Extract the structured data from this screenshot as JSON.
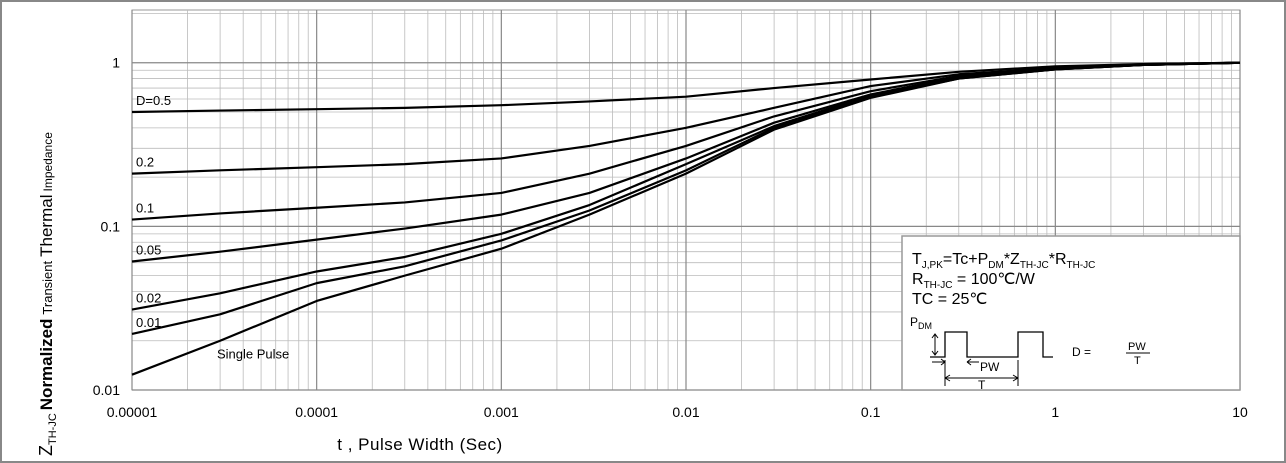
{
  "chart_data": {
    "type": "line",
    "xlabel": "t , Pulse Width (Sec)",
    "ylabel": [
      "Z",
      "TH-JC",
      "Normalized",
      "Transient",
      "Thermal",
      "Impedance"
    ],
    "x": [
      1e-05,
      3e-05,
      0.0001,
      0.0003,
      0.001,
      0.003,
      0.01,
      0.03,
      0.1,
      0.3,
      1,
      3,
      10
    ],
    "series": [
      {
        "name": "D=0.5",
        "color": "#000000",
        "values": [
          0.5,
          0.51,
          0.52,
          0.53,
          0.55,
          0.58,
          0.62,
          0.7,
          0.79,
          0.88,
          0.95,
          0.98,
          1.0
        ]
      },
      {
        "name": "0.2",
        "color": "#000000",
        "values": [
          0.21,
          0.22,
          0.23,
          0.24,
          0.26,
          0.31,
          0.4,
          0.53,
          0.72,
          0.85,
          0.93,
          0.98,
          1.0
        ]
      },
      {
        "name": "0.1",
        "color": "#000000",
        "values": [
          0.11,
          0.12,
          0.13,
          0.14,
          0.16,
          0.21,
          0.31,
          0.47,
          0.67,
          0.83,
          0.92,
          0.97,
          1.0
        ]
      },
      {
        "name": "0.05",
        "color": "#000000",
        "values": [
          0.061,
          0.07,
          0.083,
          0.097,
          0.118,
          0.16,
          0.26,
          0.43,
          0.64,
          0.82,
          0.92,
          0.97,
          1.0
        ]
      },
      {
        "name": "0.02",
        "color": "#000000",
        "values": [
          0.031,
          0.039,
          0.053,
          0.065,
          0.09,
          0.135,
          0.24,
          0.41,
          0.63,
          0.81,
          0.91,
          0.97,
          1.0
        ]
      },
      {
        "name": "0.01",
        "color": "#000000",
        "values": [
          0.022,
          0.029,
          0.045,
          0.057,
          0.082,
          0.125,
          0.22,
          0.4,
          0.62,
          0.8,
          0.91,
          0.97,
          1.0
        ]
      },
      {
        "name": "Single Pulse",
        "color": "#000000",
        "values": [
          0.0124,
          0.02,
          0.035,
          0.05,
          0.073,
          0.118,
          0.21,
          0.39,
          0.61,
          0.8,
          0.91,
          0.97,
          1.0
        ]
      }
    ],
    "xlim": [
      1e-05,
      10
    ],
    "xticks": [
      {
        "value": 1e-05,
        "label": "0.00001"
      },
      0.0001,
      0.001,
      0.01,
      0.1,
      1,
      10
    ],
    "ylim": [
      0.01,
      2.1
    ],
    "yticks": [
      0.01,
      0.1,
      1
    ],
    "xscale": "log",
    "yscale": "log",
    "grid": true,
    "annotation": {
      "formula": [
        "T",
        "J,PK",
        "=Tc+P",
        "DM",
        "*Z",
        "TH-JC",
        "*R",
        "TH-JC"
      ],
      "rth": [
        "R",
        "TH-JC",
        " = 100℃/W"
      ],
      "tc": "TC = 25℃",
      "pdm": [
        "P",
        "DM"
      ],
      "pw": "PW",
      "t": "T",
      "duty": [
        "D = ",
        "PW",
        "T"
      ]
    }
  }
}
